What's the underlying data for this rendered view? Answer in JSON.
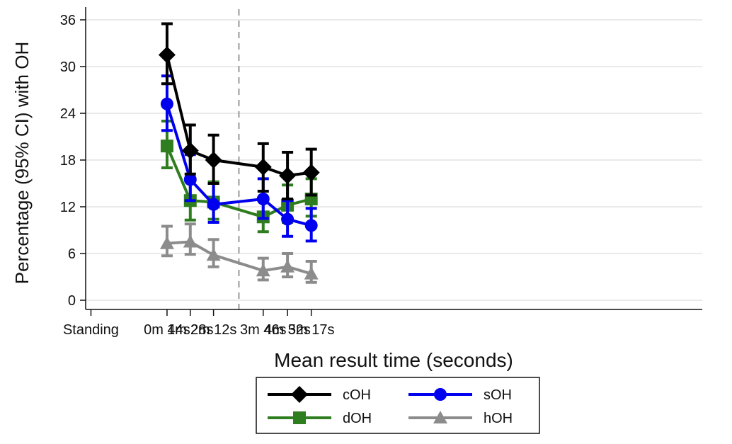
{
  "chart_data": {
    "type": "line",
    "ylabel": "Percentage (95% CI) with OH",
    "xlabel": "Mean result time (seconds)",
    "ylim": [
      0,
      36
    ],
    "yticks": [
      0,
      6,
      12,
      18,
      24,
      30,
      36
    ],
    "xlim": [
      -110,
      1057
    ],
    "x_tick_values": [
      -100,
      44,
      88,
      132,
      226,
      272,
      317
    ],
    "x_tick_labels": [
      "Standing",
      "0m 44s",
      "1m 28s",
      "2m 12s",
      "3m 46s",
      "4m 32s",
      "5m 17s"
    ],
    "reference_line_x": 180,
    "grid": "horizontal",
    "legend_position": "bottom",
    "x": [
      44,
      88,
      132,
      226,
      272,
      317
    ],
    "series": [
      {
        "name": "cOH",
        "color": "#000000",
        "marker": "diamond",
        "values": [
          31.5,
          19.2,
          18.0,
          17.1,
          16.0,
          16.4
        ],
        "ci_low": [
          27.8,
          16.2,
          15.0,
          14.0,
          13.0,
          13.5
        ],
        "ci_high": [
          35.5,
          22.5,
          21.2,
          20.1,
          19.0,
          19.4
        ]
      },
      {
        "name": "sOH",
        "color": "#0000ee",
        "marker": "circle",
        "values": [
          25.2,
          15.5,
          12.3,
          13.0,
          10.4,
          9.6
        ],
        "ci_low": [
          21.8,
          12.8,
          10.0,
          10.5,
          8.2,
          7.6
        ],
        "ci_high": [
          28.8,
          18.7,
          15.0,
          15.6,
          12.8,
          11.8
        ]
      },
      {
        "name": "dOH",
        "color": "#2e7d1e",
        "marker": "square",
        "values": [
          19.8,
          12.8,
          12.6,
          10.7,
          12.2,
          13.0
        ],
        "ci_low": [
          17.0,
          10.3,
          10.4,
          8.8,
          10.0,
          10.8
        ],
        "ci_high": [
          23.0,
          15.7,
          15.2,
          12.8,
          14.8,
          15.6
        ]
      },
      {
        "name": "hOH",
        "color": "#8c8c8c",
        "marker": "triangle",
        "values": [
          7.3,
          7.5,
          5.8,
          3.8,
          4.3,
          3.4
        ],
        "ci_low": [
          5.7,
          5.9,
          4.3,
          2.6,
          3.0,
          2.3
        ],
        "ci_high": [
          9.5,
          9.8,
          7.8,
          5.4,
          6.0,
          5.0
        ]
      }
    ]
  }
}
